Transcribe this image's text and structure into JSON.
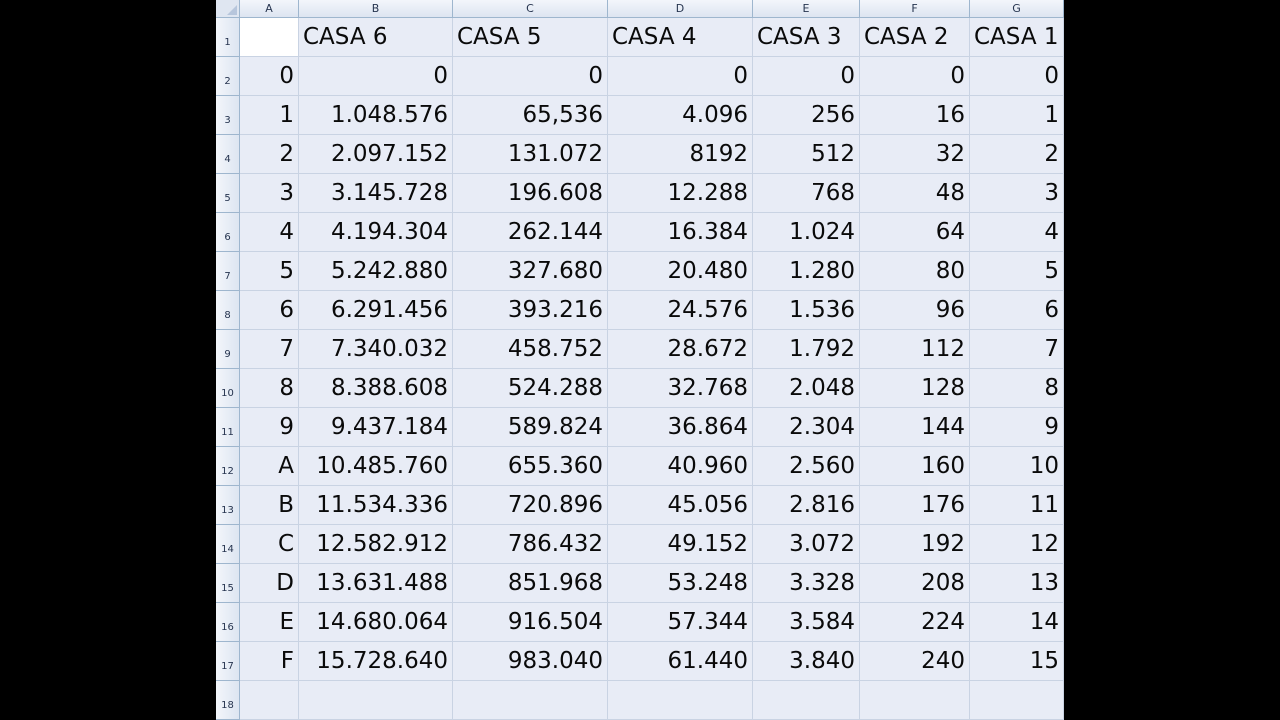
{
  "columns": [
    "A",
    "B",
    "C",
    "D",
    "E",
    "F",
    "G"
  ],
  "rows": [
    [
      "",
      "CASA 6",
      "CASA 5",
      "CASA 4",
      "CASA 3",
      "CASA 2",
      "CASA 1"
    ],
    [
      "0",
      "0",
      "0",
      "0",
      "0",
      "0",
      "0"
    ],
    [
      "1",
      "1.048.576",
      "65,536",
      "4.096",
      "256",
      "16",
      "1"
    ],
    [
      "2",
      "2.097.152",
      "131.072",
      "8192",
      "512",
      "32",
      "2"
    ],
    [
      "3",
      "3.145.728",
      "196.608",
      "12.288",
      "768",
      "48",
      "3"
    ],
    [
      "4",
      "4.194.304",
      "262.144",
      "16.384",
      "1.024",
      "64",
      "4"
    ],
    [
      "5",
      "5.242.880",
      "327.680",
      "20.480",
      "1.280",
      "80",
      "5"
    ],
    [
      "6",
      "6.291.456",
      "393.216",
      "24.576",
      "1.536",
      "96",
      "6"
    ],
    [
      "7",
      "7.340.032",
      "458.752",
      "28.672",
      "1.792",
      "112",
      "7"
    ],
    [
      "8",
      "8.388.608",
      "524.288",
      "32.768",
      "2.048",
      "128",
      "8"
    ],
    [
      "9",
      "9.437.184",
      "589.824",
      "36.864",
      "2.304",
      "144",
      "9"
    ],
    [
      "A",
      "10.485.760",
      "655.360",
      "40.960",
      "2.560",
      "160",
      "10"
    ],
    [
      "B",
      "11.534.336",
      "720.896",
      "45.056",
      "2.816",
      "176",
      "11"
    ],
    [
      "C",
      "12.582.912",
      "786.432",
      "49.152",
      "3.072",
      "192",
      "12"
    ],
    [
      "D",
      "13.631.488",
      "851.968",
      "53.248",
      "3.328",
      "208",
      "13"
    ],
    [
      "E",
      "14.680.064",
      "916.504",
      "57.344",
      "3.584",
      "224",
      "14"
    ],
    [
      "F",
      "15.728.640",
      "983.040",
      "61.440",
      "3.840",
      "240",
      "15"
    ],
    [
      "",
      "",
      "",
      "",
      "",
      "",
      ""
    ]
  ],
  "row_numbers": [
    "1",
    "2",
    "3",
    "4",
    "5",
    "6",
    "7",
    "8",
    "9",
    "10",
    "11",
    "12",
    "13",
    "14",
    "15",
    "16",
    "17",
    "18"
  ]
}
